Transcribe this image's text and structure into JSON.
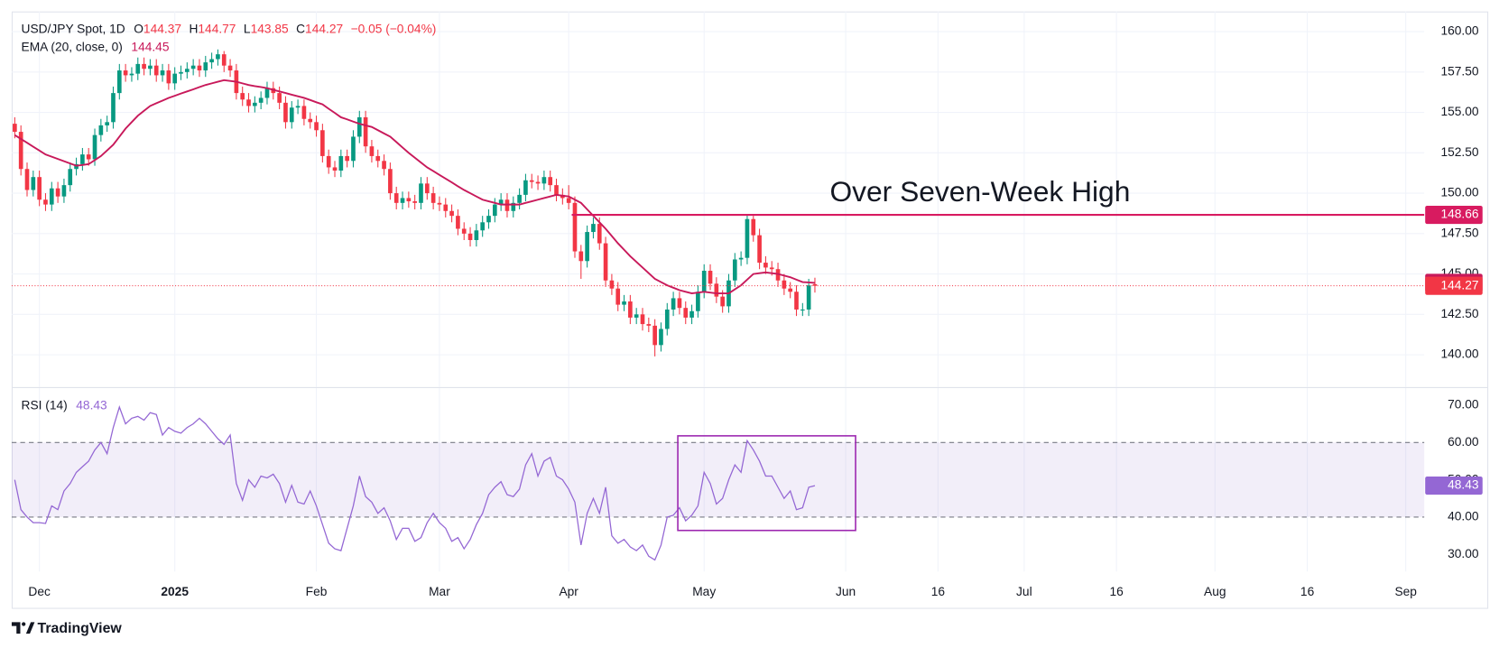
{
  "brand": "TradingView",
  "chart_data": [
    {
      "type": "candlestick",
      "title": "USD/JPY Spot, 1D",
      "ohlc_labels": [
        "O",
        "H",
        "L",
        "C"
      ],
      "change_label": "−0.05 (−0.04%)",
      "up_color": "#089981",
      "down_color": "#f23645",
      "grid": true,
      "open": [
        154.3,
        153.8,
        151.5,
        150.2,
        151.0,
        149.6,
        149.3,
        150.3,
        149.8,
        150.5,
        151.5,
        151.8,
        152.4,
        152.1,
        153.6,
        154.2,
        154.4,
        156.2,
        157.6,
        157.3,
        157.4,
        158.0,
        157.7,
        157.9,
        157.3,
        157.6,
        156.8,
        157.4,
        157.5,
        157.7,
        157.9,
        157.6,
        158.1,
        158.3,
        158.6,
        157.9,
        157.6,
        156.2,
        155.8,
        155.4,
        155.6,
        155.9,
        156.5,
        156.2,
        155.6,
        154.4,
        155.3,
        155.4,
        154.6,
        154.4,
        153.9,
        152.3,
        151.6,
        151.4,
        152.3,
        152.0,
        153.5,
        154.7,
        152.9,
        152.3,
        152.0,
        151.5,
        150.0,
        149.4,
        149.7,
        149.5,
        149.4,
        150.6,
        150.0,
        149.4,
        149.3,
        148.9,
        148.6,
        147.8,
        147.5,
        147.1,
        147.7,
        148.2,
        148.6,
        149.3,
        149.6,
        148.9,
        149.4,
        149.9,
        150.8,
        150.7,
        150.6,
        151.0,
        150.5,
        149.9,
        149.7,
        149.4,
        146.4,
        145.8,
        147.6,
        148.1,
        146.9,
        144.6,
        144.1,
        143.1,
        143.3,
        142.3,
        142.5,
        141.9,
        141.8,
        140.6,
        141.6,
        142.8,
        143.5,
        142.9,
        142.3,
        142.7,
        143.9,
        145.2,
        144.4,
        143.6,
        143.0,
        144.6,
        145.9,
        146.0,
        148.4,
        147.4,
        145.7,
        145.4,
        145.3,
        144.6,
        144.1,
        143.9,
        142.8,
        142.8,
        144.37
      ],
      "high": [
        154.7,
        154.2,
        151.9,
        151.4,
        151.4,
        150.0,
        150.7,
        150.7,
        150.9,
        151.9,
        152.2,
        152.8,
        152.8,
        154.0,
        154.6,
        154.8,
        156.6,
        158.0,
        158.0,
        157.8,
        158.4,
        158.4,
        158.3,
        158.3,
        158.0,
        158.0,
        157.8,
        157.9,
        158.1,
        158.3,
        158.3,
        158.5,
        158.7,
        158.9,
        158.8,
        158.3,
        158.0,
        156.6,
        156.2,
        156.0,
        156.3,
        156.9,
        156.9,
        156.6,
        156.0,
        155.7,
        155.8,
        155.8,
        155.0,
        154.8,
        154.3,
        152.7,
        152.0,
        152.7,
        152.7,
        153.9,
        155.1,
        155.1,
        153.3,
        152.7,
        152.4,
        151.9,
        150.4,
        150.1,
        150.1,
        149.9,
        151.0,
        151.0,
        150.4,
        149.8,
        149.7,
        149.3,
        149.0,
        148.2,
        147.9,
        148.1,
        148.6,
        149.0,
        149.7,
        150.0,
        150.0,
        149.8,
        150.3,
        151.2,
        151.2,
        151.1,
        151.4,
        151.4,
        150.9,
        150.3,
        150.5,
        149.8,
        146.8,
        148.0,
        148.5,
        148.5,
        147.3,
        145.0,
        144.5,
        143.7,
        143.7,
        142.9,
        142.9,
        142.3,
        142.2,
        142.0,
        143.2,
        143.9,
        143.9,
        143.3,
        143.1,
        144.3,
        145.6,
        145.6,
        144.8,
        144.0,
        145.0,
        146.3,
        146.4,
        148.7,
        148.6,
        147.8,
        146.1,
        145.8,
        145.7,
        145.0,
        144.5,
        144.3,
        143.2,
        144.7,
        144.77
      ],
      "low": [
        153.4,
        151.1,
        149.8,
        149.8,
        149.2,
        148.9,
        148.9,
        149.4,
        149.4,
        150.1,
        151.1,
        151.4,
        151.7,
        151.7,
        153.2,
        153.8,
        154.0,
        155.8,
        156.9,
        156.9,
        157.0,
        157.3,
        157.3,
        156.9,
        156.9,
        156.4,
        156.4,
        157.0,
        157.1,
        157.3,
        157.2,
        157.2,
        157.7,
        157.9,
        157.5,
        157.2,
        155.8,
        155.4,
        155.0,
        155.0,
        155.2,
        155.5,
        155.8,
        155.2,
        154.0,
        154.0,
        154.9,
        154.2,
        154.0,
        153.5,
        151.9,
        151.2,
        151.0,
        151.0,
        151.6,
        151.6,
        153.1,
        152.5,
        151.9,
        151.6,
        151.1,
        149.6,
        149.0,
        149.0,
        149.1,
        149.0,
        149.0,
        149.6,
        149.0,
        148.9,
        148.5,
        148.2,
        147.4,
        147.1,
        146.7,
        146.7,
        147.3,
        147.8,
        148.2,
        148.9,
        148.5,
        148.5,
        149.0,
        149.5,
        150.3,
        150.2,
        150.2,
        150.1,
        149.5,
        149.3,
        149.0,
        146.0,
        144.7,
        145.4,
        147.2,
        146.5,
        144.2,
        143.7,
        142.7,
        142.7,
        141.9,
        141.9,
        141.5,
        141.4,
        139.9,
        140.2,
        141.2,
        142.4,
        142.5,
        141.9,
        141.9,
        142.3,
        143.5,
        144.0,
        143.2,
        142.6,
        142.6,
        144.2,
        145.5,
        145.6,
        147.0,
        145.3,
        145.0,
        144.9,
        144.2,
        143.7,
        143.5,
        142.4,
        142.4,
        142.4,
        143.85
      ],
      "close": [
        153.8,
        151.5,
        150.2,
        151.0,
        149.6,
        149.3,
        150.3,
        149.8,
        150.5,
        151.5,
        151.8,
        152.4,
        152.1,
        153.6,
        154.2,
        154.4,
        156.2,
        157.6,
        157.3,
        157.4,
        158.0,
        157.7,
        157.9,
        157.3,
        157.6,
        156.8,
        157.4,
        157.5,
        157.7,
        157.9,
        157.6,
        158.1,
        158.3,
        158.6,
        157.9,
        157.6,
        156.2,
        155.8,
        155.4,
        155.6,
        155.9,
        156.5,
        156.2,
        155.6,
        154.4,
        155.3,
        155.4,
        154.6,
        154.4,
        153.9,
        152.3,
        151.6,
        151.4,
        152.3,
        152.0,
        153.5,
        154.7,
        152.9,
        152.3,
        152.0,
        151.5,
        150.0,
        149.4,
        149.7,
        149.5,
        149.4,
        150.6,
        150.0,
        149.4,
        149.3,
        148.9,
        148.6,
        147.8,
        147.5,
        147.1,
        147.7,
        148.2,
        148.6,
        149.3,
        149.6,
        148.9,
        149.4,
        149.9,
        150.8,
        150.7,
        150.6,
        151.0,
        150.5,
        149.9,
        149.7,
        149.4,
        146.4,
        145.8,
        147.6,
        148.1,
        146.9,
        144.6,
        144.1,
        143.1,
        143.3,
        142.3,
        142.5,
        141.9,
        141.8,
        140.6,
        141.6,
        142.8,
        143.5,
        142.9,
        142.3,
        142.7,
        143.9,
        145.2,
        144.4,
        143.6,
        143.0,
        144.6,
        145.9,
        146.0,
        148.4,
        147.4,
        145.7,
        145.4,
        145.3,
        144.6,
        144.1,
        143.9,
        142.8,
        142.8,
        144.3,
        144.27
      ],
      "series": [
        {
          "name": "EMA (20, close, 0)",
          "color": "#c8195a",
          "values": [
            153.6,
            153.36,
            153.12,
            152.88,
            152.64,
            152.4,
            152.26,
            152.12,
            151.98,
            151.84,
            151.7,
            151.75,
            151.8,
            152.05,
            152.3,
            152.65,
            153.0,
            153.5,
            154.0,
            154.4,
            154.8,
            155.1,
            155.4,
            155.57,
            155.73,
            155.9,
            156.03,
            156.17,
            156.3,
            156.43,
            156.57,
            156.7,
            156.8,
            156.9,
            157.0,
            156.95,
            156.9,
            156.8,
            156.7,
            156.63,
            156.57,
            156.5,
            156.4,
            156.3,
            156.2,
            156.1,
            156.0,
            155.9,
            155.77,
            155.63,
            155.5,
            155.23,
            154.97,
            154.7,
            154.57,
            154.43,
            154.3,
            154.2,
            154.1,
            153.9,
            153.7,
            153.5,
            153.17,
            152.83,
            152.5,
            152.2,
            151.9,
            151.6,
            151.37,
            151.13,
            150.9,
            150.67,
            150.43,
            150.2,
            150.0,
            149.8,
            149.6,
            149.5,
            149.4,
            149.3,
            149.3,
            149.3,
            149.3,
            149.4,
            149.5,
            149.6,
            149.7,
            149.8,
            149.9,
            149.85,
            149.8,
            149.6,
            149.4,
            149.0,
            148.6,
            148.2,
            147.8,
            147.35,
            146.9,
            146.5,
            146.1,
            145.75,
            145.4,
            145.05,
            144.7,
            144.5,
            144.3,
            144.15,
            144.0,
            143.9,
            143.8,
            143.85,
            143.9,
            143.85,
            143.8,
            143.8,
            143.8,
            144.05,
            144.3,
            144.65,
            145.0,
            145.05,
            145.1,
            145.05,
            145.0,
            144.9,
            144.8,
            144.65,
            144.5,
            144.48,
            144.45
          ]
        }
      ],
      "annotations": [
        {
          "value": 148.66,
          "text": "Over Seven-Week High",
          "color": "#d81b60"
        }
      ],
      "ylim": [
        138,
        161.25
      ],
      "yticks": [
        {
          "value": 140,
          "label": "140.00"
        },
        {
          "value": 142.5,
          "label": "142.50"
        },
        {
          "value": 145,
          "label": "145.00"
        },
        {
          "value": 147.5,
          "label": "147.50"
        },
        {
          "value": 150,
          "label": "150.00"
        },
        {
          "value": 152.5,
          "label": "152.50"
        },
        {
          "value": 155,
          "label": "155.00"
        },
        {
          "value": 157.5,
          "label": "157.50"
        },
        {
          "value": 160,
          "label": "160.00"
        }
      ],
      "xlim": [
        -0.5,
        229
      ],
      "xticks": [
        {
          "value": 4,
          "label": "Dec"
        },
        {
          "value": 26,
          "label": "2025"
        },
        {
          "value": 49,
          "label": "Feb"
        },
        {
          "value": 69,
          "label": "Mar"
        },
        {
          "value": 90,
          "label": "Apr"
        },
        {
          "value": 112,
          "label": "May"
        },
        {
          "value": 135,
          "label": "Jun"
        },
        {
          "value": 150,
          "label": "16"
        },
        {
          "value": 164,
          "label": "Jul"
        },
        {
          "value": 179,
          "label": "16"
        },
        {
          "value": 195,
          "label": "Aug"
        },
        {
          "value": 210,
          "label": "16"
        },
        {
          "value": 226,
          "label": "Sep"
        }
      ]
    },
    {
      "type": "line",
      "series": [
        {
          "name": "RSI (14)",
          "color": "#9467d4",
          "values": [
            50,
            42,
            40,
            38.5,
            38.5,
            38.3,
            43,
            42,
            47,
            49,
            52,
            53.5,
            55,
            58,
            60,
            57,
            64,
            69.5,
            65,
            66.5,
            67,
            66,
            68,
            67.5,
            62,
            64,
            63,
            62.5,
            64,
            65,
            66.5,
            65,
            63,
            61,
            59.5,
            62,
            49,
            44.5,
            50,
            48,
            51,
            50.5,
            51.5,
            49,
            44,
            48.5,
            44,
            43.5,
            47,
            43,
            38,
            33,
            31.5,
            31,
            37,
            43,
            51,
            45.5,
            44,
            41,
            42.5,
            39,
            34,
            37,
            37,
            33.5,
            34.5,
            38.5,
            41,
            38.5,
            37,
            33.5,
            34.5,
            31.5,
            34,
            38,
            41,
            46,
            48,
            49.5,
            46,
            45.5,
            47.5,
            54,
            57,
            51,
            55,
            56,
            51,
            50,
            47.5,
            44,
            32.5,
            41,
            45,
            41,
            48,
            35,
            33,
            34,
            32,
            31,
            32.5,
            29.5,
            28.5,
            32.5,
            40,
            40.5,
            42.5,
            39,
            40.5,
            43,
            52,
            49,
            43.5,
            45,
            50,
            54,
            52,
            60.5,
            58,
            55,
            51,
            51,
            48,
            45,
            47,
            42,
            42.5,
            48,
            48.43
          ]
        }
      ],
      "band": [
        40,
        60
      ],
      "band_color": "#7e57c2",
      "ylim": [
        25.4,
        74.6
      ],
      "yticks": [
        {
          "value": 30,
          "label": "30.00"
        },
        {
          "value": 40,
          "label": "40.00"
        },
        {
          "value": 50,
          "label": "50.00"
        },
        {
          "value": 60,
          "label": "60.00"
        },
        {
          "value": 70,
          "label": "70.00"
        }
      ]
    }
  ]
}
